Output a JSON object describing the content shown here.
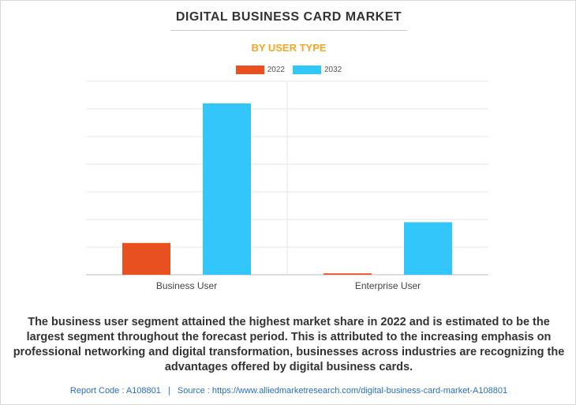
{
  "title": "DIGITAL BUSINESS CARD MARKET",
  "subtitle": "BY USER TYPE",
  "legend": [
    {
      "label": "2022",
      "color": "#e8501f"
    },
    {
      "label": "2032",
      "color": "#33c6fb"
    }
  ],
  "chart_data": {
    "type": "bar",
    "categories": [
      "Business User",
      "Enterprise User"
    ],
    "series": [
      {
        "name": "2022",
        "values": [
          2.3,
          0.1
        ],
        "color": "#e8501f"
      },
      {
        "name": "2032",
        "values": [
          12.4,
          3.8
        ],
        "color": "#33c6fb"
      }
    ],
    "ylim": [
      0,
      14
    ],
    "grid": true,
    "legend_position": "top-center"
  },
  "description": "The business user segment attained the highest market share in 2022 and is estimated to be the largest segment throughout the forecast period. This is attributed to the increasing emphasis on professional networking and digital transformation, businesses across industries are recognizing the advantages offered by digital business cards.",
  "footer": {
    "report_code": "Report Code : A108801",
    "separator": "|",
    "source": "Source : https://www.alliedmarketresearch.com/digital-business-card-market-A108801"
  }
}
